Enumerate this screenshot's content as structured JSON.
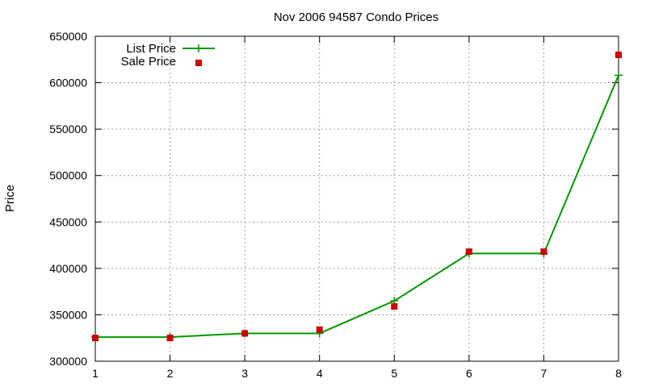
{
  "chart_data": {
    "type": "line",
    "title": "Nov 2006 94587 Condo Prices",
    "xlabel": "",
    "ylabel": "Price",
    "xlim": [
      1,
      8
    ],
    "ylim": [
      300000,
      650000
    ],
    "x_ticks": [
      1,
      2,
      3,
      4,
      5,
      6,
      7,
      8
    ],
    "y_ticks": [
      300000,
      350000,
      400000,
      450000,
      500000,
      550000,
      600000,
      650000
    ],
    "grid": true,
    "legend_position": "top-left",
    "x": [
      1,
      2,
      3,
      4,
      5,
      6,
      7,
      8
    ],
    "series": [
      {
        "name": "List Price",
        "style": "linespoints",
        "marker": "plus",
        "color": "#009900",
        "values": [
          326000,
          326000,
          330000,
          330000,
          365000,
          416000,
          416000,
          608000
        ]
      },
      {
        "name": "Sale Price",
        "style": "points",
        "marker": "square",
        "color": "#cc0000",
        "values": [
          325000,
          325000,
          330000,
          334000,
          359000,
          418000,
          418000,
          630000
        ]
      }
    ]
  }
}
